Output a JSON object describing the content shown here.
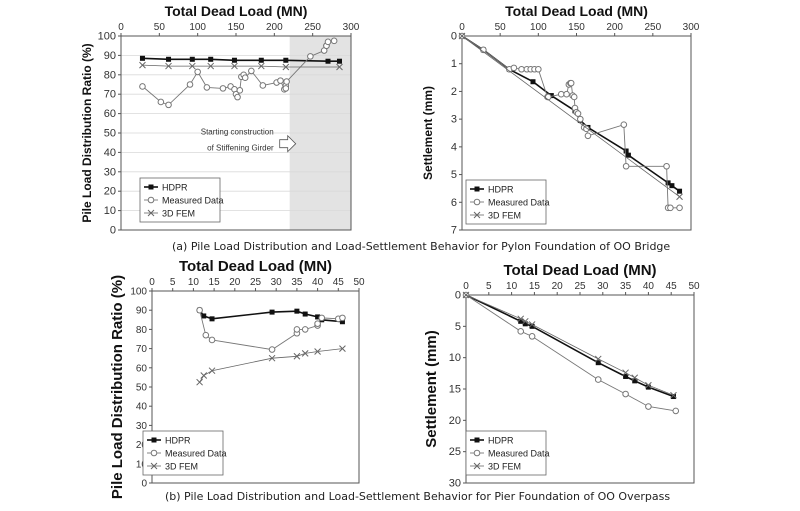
{
  "captions": {
    "a": "(a) Pile Load Distribution and Load-Settlement Behavior for Pylon Foundation of OO Bridge",
    "b": "(b) Pile Load Distribution and Load-Settlement Behavior for Pier Foundation of OO Overpass"
  },
  "colors": {
    "hdpr": "#111111",
    "measured": "#777777",
    "fem": "#666666",
    "shade": "#e3e3e3",
    "grid": "#d9d9d9"
  },
  "chart_data": [
    {
      "id": "a-left",
      "type": "line",
      "xlabel": "Total Dead Load (MN)",
      "ylabel": "Pile Load Distribution Ratio (%)",
      "xlim": [
        0,
        300
      ],
      "ylim": [
        0,
        100
      ],
      "xticks": [
        0,
        50,
        100,
        150,
        200,
        250,
        300
      ],
      "yticks": [
        0,
        10,
        20,
        30,
        40,
        50,
        60,
        70,
        80,
        90,
        100
      ],
      "grid": "horizontal",
      "shaded_x_range": [
        220,
        300
      ],
      "annotation": {
        "lines": [
          "Starting construction",
          "of Stiffening Girder"
        ],
        "x": 207,
        "y": 45
      },
      "legend": {
        "position": "bottom-left",
        "entries": [
          "HDPR",
          "Measured Data",
          "3D FEM"
        ]
      },
      "series": [
        {
          "name": "HDPR",
          "marker": "square",
          "x": [
            28,
            62,
            93,
            117,
            148,
            183,
            215,
            270,
            285
          ],
          "y": [
            88.5,
            88,
            88,
            88,
            87.5,
            87.5,
            87.5,
            87,
            87
          ]
        },
        {
          "name": "Measured Data",
          "marker": "circle",
          "x": [
            28,
            52,
            62,
            90,
            100,
            112,
            133,
            143,
            148,
            150,
            152,
            155,
            157,
            160,
            162,
            170,
            185,
            203,
            208,
            213,
            215,
            215,
            216,
            247,
            265,
            268,
            268,
            270,
            278
          ],
          "y": [
            74,
            66,
            64.5,
            75,
            81.5,
            73.5,
            73,
            74,
            72.5,
            70,
            68.5,
            72,
            79,
            80,
            78.5,
            82,
            74.5,
            76,
            77,
            72.5,
            74.5,
            73,
            76.5,
            89.5,
            92.5,
            95,
            95,
            97,
            97.5
          ]
        },
        {
          "name": "3D FEM",
          "marker": "x",
          "x": [
            28,
            62,
            93,
            117,
            148,
            183,
            215,
            285
          ],
          "y": [
            85,
            84.5,
            84.5,
            84.5,
            84.5,
            84.5,
            84,
            84
          ]
        }
      ]
    },
    {
      "id": "a-right",
      "type": "line",
      "xlabel": "Total Dead Load (MN)",
      "ylabel": "Settlement (mm)",
      "xlim": [
        0,
        300
      ],
      "ylim": [
        0,
        7
      ],
      "y_inverted": true,
      "xticks": [
        0,
        50,
        100,
        150,
        200,
        250,
        300
      ],
      "yticks": [
        0,
        1,
        2,
        3,
        4,
        5,
        6,
        7
      ],
      "legend": {
        "position": "bottom-left",
        "entries": [
          "HDPR",
          "Measured Data",
          "3D FEM"
        ]
      },
      "series": [
        {
          "name": "HDPR",
          "marker": "square",
          "x": [
            0,
            28,
            62,
            93,
            117,
            148,
            155,
            165,
            215,
            218,
            270,
            275,
            285
          ],
          "y": [
            0,
            0.5,
            1.2,
            1.65,
            2.15,
            2.7,
            3.05,
            3.3,
            4.15,
            4.3,
            5.3,
            5.4,
            5.6
          ]
        },
        {
          "name": "Measured Data",
          "marker": "circle",
          "x": [
            0,
            28,
            62,
            68,
            78,
            85,
            90,
            95,
            100,
            112,
            113,
            130,
            137,
            140,
            142,
            143,
            145,
            147,
            148,
            150,
            152,
            155,
            160,
            163,
            165,
            212,
            215,
            268,
            270,
            273,
            285
          ],
          "y": [
            0,
            0.5,
            1.2,
            1.15,
            1.2,
            1.2,
            1.2,
            1.2,
            1.2,
            2.2,
            2.2,
            2.1,
            2.1,
            1.75,
            1.7,
            1.7,
            2.15,
            2.2,
            2.6,
            2.75,
            2.8,
            3.0,
            3.3,
            3.35,
            3.6,
            3.2,
            4.7,
            4.7,
            6.2,
            6.2,
            6.2
          ]
        },
        {
          "name": "3D FEM",
          "marker": "x",
          "x": [
            0,
            285
          ],
          "y": [
            0,
            5.8
          ]
        }
      ]
    },
    {
      "id": "b-left",
      "type": "line",
      "xlabel": "Total Dead Load (MN)",
      "ylabel": "Pile Load Distribution Ratio (%)",
      "xlim": [
        0,
        50
      ],
      "ylim": [
        0,
        100
      ],
      "xticks": [
        0,
        5,
        10,
        15,
        20,
        25,
        30,
        35,
        40,
        45,
        50
      ],
      "yticks": [
        0,
        10,
        20,
        30,
        40,
        50,
        60,
        70,
        80,
        90,
        100
      ],
      "grid": "none",
      "legend": {
        "position": "bottom-left",
        "entries": [
          "HDPR",
          "Measured Data",
          "3D FEM"
        ]
      },
      "series": [
        {
          "name": "HDPR",
          "marker": "square",
          "x": [
            11.5,
            12.5,
            14.5,
            29,
            35,
            37,
            40,
            41,
            46
          ],
          "y": [
            90,
            87,
            85.5,
            89,
            89.5,
            88,
            86.5,
            85,
            84
          ]
        },
        {
          "name": "Measured Data",
          "marker": "circle",
          "x": [
            11.5,
            13,
            14.5,
            29,
            35,
            35,
            37,
            40,
            40,
            41,
            45,
            46
          ],
          "y": [
            90,
            77,
            74.5,
            69.5,
            78,
            80,
            80,
            82,
            83,
            86,
            85.5,
            86
          ]
        },
        {
          "name": "3D FEM",
          "marker": "x",
          "x": [
            11.5,
            12.5,
            14.5,
            29,
            35,
            37,
            40,
            46
          ],
          "y": [
            52.5,
            56,
            58.5,
            65,
            66,
            67.5,
            68.5,
            70
          ]
        }
      ]
    },
    {
      "id": "b-right",
      "type": "line",
      "xlabel": "Total Dead Load (MN)",
      "ylabel": "Settlement (mm)",
      "xlim": [
        0,
        50
      ],
      "ylim": [
        0,
        30
      ],
      "y_inverted": true,
      "xticks": [
        0,
        5,
        10,
        15,
        20,
        25,
        30,
        35,
        40,
        45,
        50
      ],
      "yticks": [
        0,
        5,
        10,
        15,
        20,
        25,
        30
      ],
      "legend": {
        "position": "bottom-left",
        "entries": [
          "HDPR",
          "Measured Data",
          "3D FEM"
        ]
      },
      "series": [
        {
          "name": "HDPR",
          "marker": "square",
          "x": [
            0,
            12,
            13,
            14.5,
            29,
            35,
            37,
            40,
            45.5
          ],
          "y": [
            0,
            4.2,
            4.6,
            5,
            10.8,
            13,
            13.7,
            14.7,
            16.2
          ]
        },
        {
          "name": "Measured Data",
          "marker": "circle",
          "x": [
            0,
            12,
            14.5,
            29,
            35,
            40,
            46
          ],
          "y": [
            0,
            5.8,
            6.6,
            13.5,
            15.8,
            17.8,
            18.5
          ]
        },
        {
          "name": "3D FEM",
          "marker": "x",
          "x": [
            0,
            12,
            13,
            14.5,
            29,
            35,
            37,
            40,
            45.5
          ],
          "y": [
            0,
            3.8,
            4.2,
            4.7,
            10.2,
            12.4,
            13.2,
            14.4,
            16
          ]
        }
      ]
    }
  ]
}
